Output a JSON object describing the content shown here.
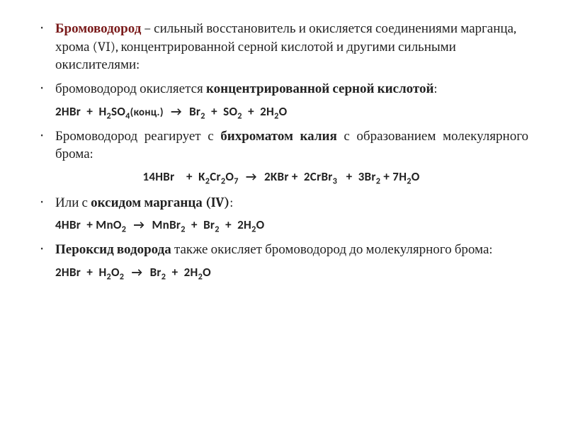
{
  "colors": {
    "term_color": "#7a1b1b",
    "text_color": "#222222",
    "background": "#ffffff"
  },
  "typography": {
    "body_font": "Cambria/Georgia serif",
    "body_size_pt": 14,
    "eq_font": "Calibri sans-serif",
    "eq_size_pt": 12,
    "eq_weight": "semibold"
  },
  "bullets": [
    {
      "term": "Бромоводород",
      "term_suffix": " – сильный восстановитель и окисляется соединениями марганца, хрома (VI),  концентрированной серной кислотой и другими сильными окислителями:"
    },
    {
      "pre": "бромоводород окисляется ",
      "bold": "концентрированной серной кислотой",
      "post": ":"
    },
    {
      "pre": "Бромоводород реагирует с ",
      "bold": "бихроматом калия",
      "post": " с образованием молекулярного брома:"
    },
    {
      "pre": "Или с ",
      "bold": "оксидом марганца (IV)",
      "post": ":"
    },
    {
      "bold_lead": "Пероксид водорода",
      "rest": " также окисляет бромоводород до молекулярного брома:"
    }
  ],
  "equations": {
    "eq1": {
      "formula": "2HBr  +  H₂SO₄(конц.)  →  Br₂  +  SO₂  +  2H₂O"
    },
    "eq2": {
      "formula": "14HBr   +  K₂Cr₂O₇  →  2KBr +  2CrBr₃   +  3Br₂ + 7H₂O"
    },
    "eq3": {
      "formula": "4HBr  + MnO₂  →  MnBr₂  +  Br₂  +  2H₂O"
    },
    "eq4": {
      "formula": "2HBr  +  H₂O₂  →  Br₂  +  2H₂O"
    }
  }
}
